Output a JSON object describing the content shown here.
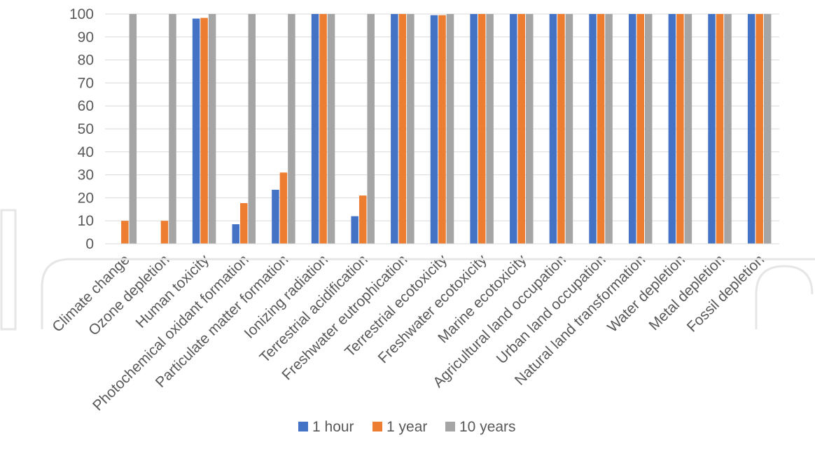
{
  "chart_data": {
    "type": "bar",
    "categories": [
      "Climate change",
      "Ozone depletion",
      "Human toxicity",
      "Photochemical oxidant formation",
      "Particulate matter formation",
      "Ionizing radiation",
      "Terrestrial acidification",
      "Freshwater eutrophication",
      "Terrestrial ecotoxicity",
      "Freshwater ecotoxicity",
      "Marine ecotoxicity",
      "Agricultural land occupation",
      "Urban land occupation",
      "Natural land transformation",
      "Water depletion",
      "Metal depletion",
      "Fossil depletion"
    ],
    "series": [
      {
        "name": "1 hour",
        "color": "#4472C4",
        "values": [
          0,
          0,
          98,
          8.5,
          23.5,
          100,
          12,
          100,
          99.5,
          100,
          100,
          100,
          100,
          100,
          100,
          100,
          100
        ]
      },
      {
        "name": "1 year",
        "color": "#ED7D31",
        "values": [
          10,
          10,
          98.3,
          17.7,
          31,
          100,
          21,
          100,
          99.5,
          100,
          100,
          100,
          100,
          100,
          100,
          100,
          100
        ]
      },
      {
        "name": "10 years",
        "color": "#A5A5A5",
        "values": [
          100,
          100,
          100,
          100,
          100,
          100,
          100,
          100,
          100,
          100,
          100,
          100,
          100,
          100,
          100,
          100,
          100
        ]
      }
    ],
    "yticks": [
      "0",
      "10",
      "20",
      "30",
      "40",
      "50",
      "60",
      "70",
      "80",
      "90",
      "100"
    ],
    "ylim": [
      0,
      100
    ],
    "grid": true,
    "legend_position": "bottom",
    "title": "",
    "xlabel": "",
    "ylabel": ""
  }
}
